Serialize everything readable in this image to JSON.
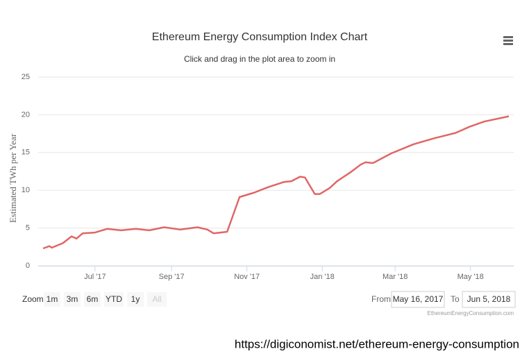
{
  "chart_data": {
    "type": "line",
    "title": "Ethereum Energy Consumption Index Chart",
    "subtitle": "Click and drag in the plot area to zoom in",
    "y_label": "Estimated TWh per Year",
    "x": [
      "2017-05-20",
      "2017-05-25",
      "2017-05-27",
      "2017-06-05",
      "2017-06-12",
      "2017-06-16",
      "2017-06-21",
      "2017-07-01",
      "2017-07-11",
      "2017-07-22",
      "2017-08-03",
      "2017-08-14",
      "2017-08-26",
      "2017-09-08",
      "2017-09-22",
      "2017-09-30",
      "2017-10-05",
      "2017-10-16",
      "2017-10-26",
      "2017-11-07",
      "2017-11-18",
      "2017-12-01",
      "2017-12-07",
      "2017-12-14",
      "2017-12-18",
      "2017-12-22",
      "2017-12-26",
      "2017-12-30",
      "2018-01-07",
      "2018-01-13",
      "2018-01-24",
      "2018-02-01",
      "2018-02-05",
      "2018-02-11",
      "2018-02-26",
      "2018-03-16",
      "2018-04-02",
      "2018-04-19",
      "2018-04-30",
      "2018-05-12",
      "2018-06-01"
    ],
    "values": [
      2.3,
      2.6,
      2.4,
      3.0,
      3.9,
      3.6,
      4.3,
      4.4,
      4.9,
      4.7,
      4.9,
      4.7,
      5.1,
      4.8,
      5.1,
      4.8,
      4.3,
      4.5,
      9.1,
      9.7,
      10.4,
      11.1,
      11.2,
      11.8,
      11.7,
      10.6,
      9.5,
      9.5,
      10.3,
      11.2,
      12.4,
      13.4,
      13.7,
      13.6,
      14.9,
      16.1,
      16.9,
      17.6,
      18.4,
      19.1,
      19.8
    ],
    "color": "#e06666",
    "xlim": [
      "2017-05-16",
      "2018-06-05"
    ],
    "xticks": [
      {
        "value": "2017-07-01",
        "label": "Jul '17"
      },
      {
        "value": "2017-09-01",
        "label": "Sep '17"
      },
      {
        "value": "2017-11-01",
        "label": "Nov '17"
      },
      {
        "value": "2018-01-01",
        "label": "Jan '18"
      },
      {
        "value": "2018-03-01",
        "label": "Mar '18"
      },
      {
        "value": "2018-05-01",
        "label": "May '18"
      }
    ],
    "ylim": [
      0,
      25
    ],
    "yticks": [
      0,
      5,
      10,
      15,
      20,
      25
    ],
    "grid": true
  },
  "range_selector": {
    "zoom_label": "Zoom",
    "buttons": [
      "1m",
      "3m",
      "6m",
      "YTD",
      "1y",
      "All"
    ],
    "from_label": "From",
    "from_value": "May 16, 2017",
    "to_label": "To",
    "to_value": "Jun 5, 2018"
  },
  "credits": "EthereumEnergyConsumption.com",
  "source_url": "https://digiconomist.net/ethereum-energy-consumption"
}
